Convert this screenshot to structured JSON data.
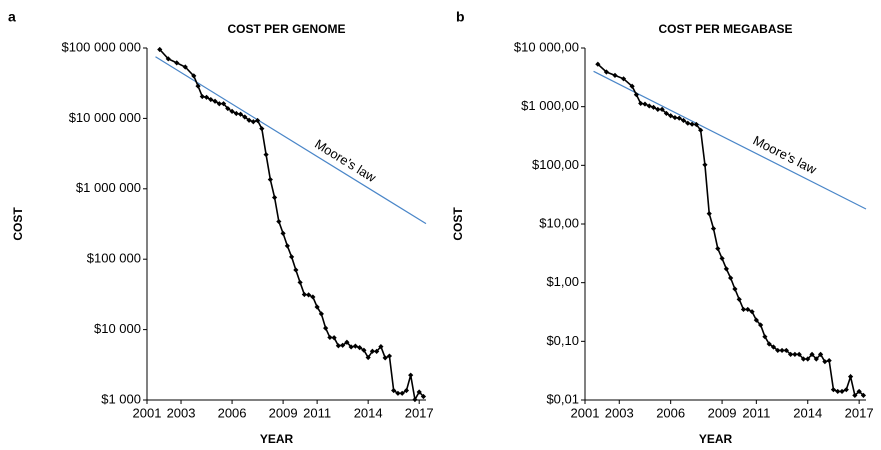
{
  "chart_data": [
    {
      "type": "line",
      "panel": "a",
      "title": "COST PER GENOME",
      "x_label": "YEAR",
      "y_label": "COST",
      "log_y": true,
      "color": "#000000",
      "x": [
        2001.75,
        2002.25,
        2002.75,
        2003.25,
        2003.75,
        2004,
        2004.25,
        2004.5,
        2004.75,
        2005,
        2005.25,
        2005.5,
        2005.75,
        2006,
        2006.25,
        2006.5,
        2006.75,
        2007,
        2007.25,
        2007.5,
        2007.75,
        2008,
        2008.25,
        2008.5,
        2008.75,
        2009,
        2009.25,
        2009.5,
        2009.75,
        2010,
        2010.25,
        2010.5,
        2010.75,
        2011,
        2011.25,
        2011.5,
        2011.75,
        2012,
        2012.25,
        2012.5,
        2012.75,
        2013,
        2013.25,
        2013.5,
        2013.75,
        2014,
        2014.25,
        2014.5,
        2014.75,
        2015,
        2015.25,
        2015.5,
        2015.75,
        2016,
        2016.25,
        2016.5,
        2016.75,
        2017,
        2017.25
      ],
      "values": [
        95263072,
        70175437,
        61448422,
        53751684,
        40157554,
        28780376,
        20442576,
        19934346,
        18519312,
        17534970,
        16159699,
        16180224,
        13801124,
        12585659,
        11732535,
        11455315,
        10474556,
        9408739,
        8967841,
        9347640,
        7147571,
        3063820,
        1352982,
        752080,
        342502,
        232735,
        154714,
        108065,
        70333,
        46774,
        31512,
        31125,
        29092,
        20963,
        16712,
        10497,
        7743,
        7666,
        5901,
        5985,
        6618,
        5671,
        5826,
        5550,
        5096,
        4008,
        4920,
        4905,
        5731,
        3970,
        4211,
        1363,
        1245,
        1245,
        1363,
        2253,
        1014,
        1300,
        1121
      ],
      "trend": {
        "label": "Moore's law",
        "color": "#4a86c8",
        "x": [
          2001.5,
          2017.4
        ],
        "values": [
          75000000,
          320000
        ]
      },
      "xlim": [
        2001,
        2017.4
      ],
      "xticks": [
        2001,
        2003,
        2006,
        2009,
        2011,
        2014,
        2017
      ],
      "ylim": [
        1000,
        100000000
      ],
      "yticks": [
        {
          "value": 1000,
          "label": "$1 000"
        },
        {
          "value": 10000,
          "label": "$10 000"
        },
        {
          "value": 100000,
          "label": "$100 000"
        },
        {
          "value": 1000000,
          "label": "$1 000 000"
        },
        {
          "value": 10000000,
          "label": "$10 000 000"
        },
        {
          "value": 100000000,
          "label": "$100 000 000"
        }
      ]
    },
    {
      "type": "line",
      "panel": "b",
      "title": "COST PER MEGABASE",
      "x_label": "YEAR",
      "y_label": "COST",
      "log_y": true,
      "color": "#000000",
      "x": [
        2001.75,
        2002.25,
        2002.75,
        2003.25,
        2003.75,
        2004,
        2004.25,
        2004.5,
        2004.75,
        2005,
        2005.25,
        2005.5,
        2005.75,
        2006,
        2006.25,
        2006.5,
        2006.75,
        2007,
        2007.25,
        2007.5,
        2007.75,
        2008,
        2008.25,
        2008.5,
        2008.75,
        2009,
        2009.25,
        2009.5,
        2009.75,
        2010,
        2010.25,
        2010.5,
        2010.75,
        2011,
        2011.25,
        2011.5,
        2011.75,
        2012,
        2012.25,
        2012.5,
        2012.75,
        2013,
        2013.25,
        2013.5,
        2013.75,
        2014,
        2014.25,
        2014.5,
        2014.75,
        2015,
        2015.25,
        2015.5,
        2015.75,
        2016,
        2016.25,
        2016.5,
        2016.75,
        2017,
        2017.25
      ],
      "values": [
        5292.39,
        3898.64,
        3413.8,
        2986.2,
        2230.98,
        1598.91,
        1135.7,
        1107.46,
        1028.85,
        974.16,
        897.76,
        898.9,
        766.73,
        699.2,
        651.81,
        636.41,
        581.92,
        522.71,
        502.61,
        495.96,
        397.09,
        102.13,
        15.03,
        8.36,
        3.81,
        2.59,
        1.72,
        1.2,
        0.78,
        0.52,
        0.35,
        0.35,
        0.32,
        0.23,
        0.19,
        0.12,
        0.09,
        0.08,
        0.07,
        0.07,
        0.07,
        0.06,
        0.06,
        0.06,
        0.05,
        0.05,
        0.06,
        0.05,
        0.06,
        0.045,
        0.047,
        0.015,
        0.014,
        0.014,
        0.015,
        0.025,
        0.012,
        0.014,
        0.012
      ],
      "trend": {
        "label": "Moore's law",
        "color": "#4a86c8",
        "x": [
          2001.5,
          2017.4
        ],
        "values": [
          4000,
          18
        ]
      },
      "xlim": [
        2001,
        2017.4
      ],
      "xticks": [
        2001,
        2003,
        2006,
        2009,
        2011,
        2014,
        2017
      ],
      "ylim": [
        0.01,
        10000
      ],
      "yticks": [
        {
          "value": 0.01,
          "label": "$0,01"
        },
        {
          "value": 0.1,
          "label": "$0,10"
        },
        {
          "value": 1,
          "label": "$1,00"
        },
        {
          "value": 10,
          "label": "$10,00"
        },
        {
          "value": 100,
          "label": "$100,00"
        },
        {
          "value": 1000,
          "label": "$1 000,00"
        },
        {
          "value": 10000,
          "label": "$10 000,00"
        }
      ]
    }
  ]
}
